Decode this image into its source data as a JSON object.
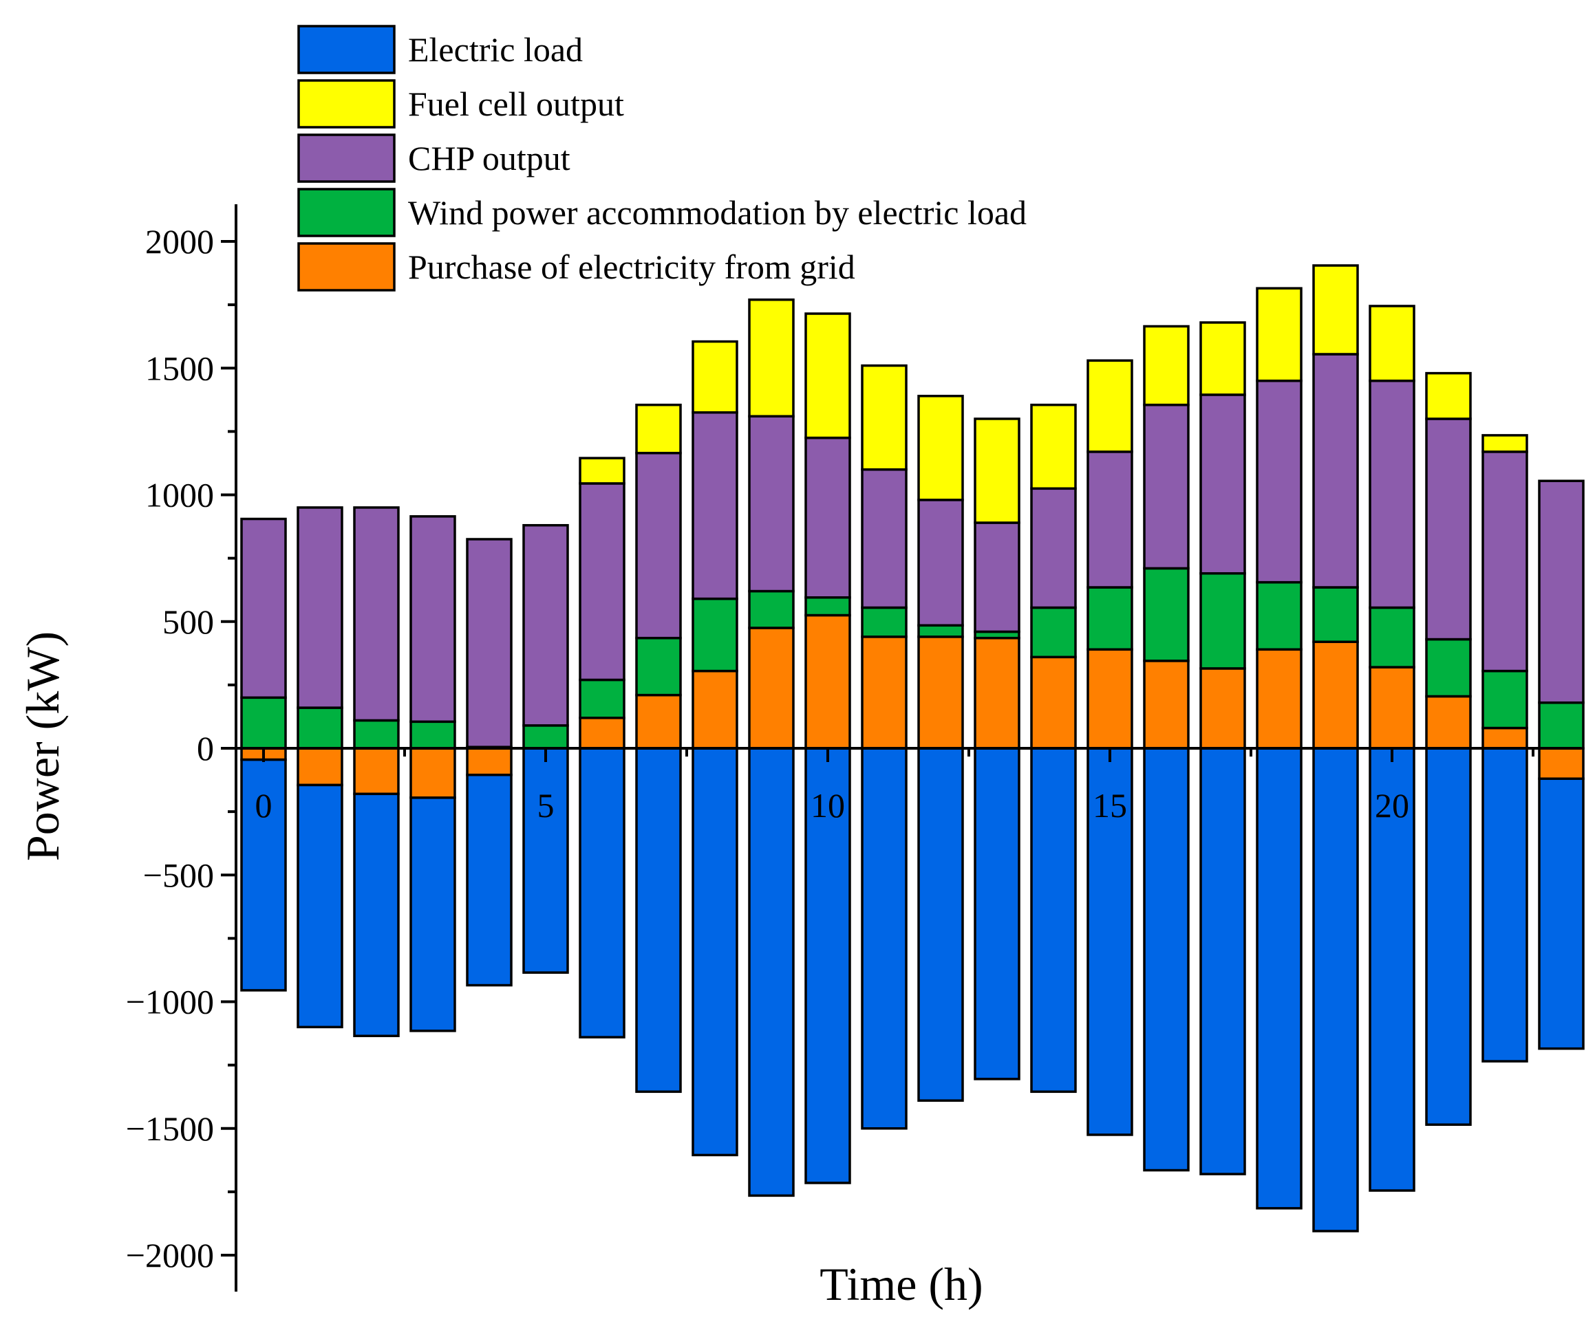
{
  "chart_data": {
    "type": "bar",
    "stacked": true,
    "xlabel": "Time (h)",
    "ylabel": "Power (kW)",
    "ylim": [
      -2000,
      2000
    ],
    "xlim": [
      -0.5,
      23.5
    ],
    "yticks": [
      "2000",
      "1500",
      "1000",
      "500",
      "0",
      "-500",
      "-1000",
      "-1500",
      "-2000"
    ],
    "xticks": [
      "0",
      "5",
      "10",
      "15",
      "20"
    ],
    "x": [
      0,
      1,
      2,
      3,
      4,
      5,
      6,
      7,
      8,
      9,
      10,
      11,
      12,
      13,
      14,
      15,
      16,
      17,
      18,
      19,
      20,
      21,
      22,
      23
    ],
    "legend_position": "top-left",
    "series": [
      {
        "name": "Electric load",
        "color": "#0066e6",
        "values": [
          -910,
          -955,
          -955,
          -920,
          -830,
          -885,
          -1140,
          -1355,
          -1605,
          -1765,
          -1715,
          -1500,
          -1390,
          -1305,
          -1355,
          -1525,
          -1665,
          -1680,
          -1815,
          -1905,
          -1745,
          -1485,
          -1235,
          -1065
        ]
      },
      {
        "name": "Fuel cell output",
        "color": "#ffff00",
        "values": [
          0,
          0,
          0,
          0,
          0,
          0,
          100,
          190,
          280,
          460,
          490,
          410,
          410,
          410,
          330,
          360,
          310,
          285,
          365,
          350,
          295,
          180,
          65,
          0
        ]
      },
      {
        "name": "CHP output",
        "color": "#8c5cac",
        "values": [
          705,
          790,
          840,
          810,
          820,
          790,
          775,
          730,
          735,
          690,
          630,
          545,
          495,
          430,
          470,
          535,
          645,
          705,
          795,
          920,
          895,
          870,
          865,
          875
        ]
      },
      {
        "name": "Wind power accommodation by electric load",
        "color": "#00b140",
        "values": [
          200,
          160,
          110,
          105,
          5,
          90,
          150,
          225,
          285,
          145,
          70,
          115,
          45,
          25,
          195,
          245,
          365,
          375,
          265,
          215,
          235,
          225,
          225,
          180
        ]
      },
      {
        "name": "Purchase of electricity from grid",
        "color": "#ff8000",
        "values": [
          -45,
          -145,
          -180,
          -195,
          -105,
          0,
          120,
          210,
          305,
          475,
          525,
          440,
          440,
          435,
          360,
          390,
          345,
          315,
          390,
          420,
          320,
          205,
          80,
          -120
        ]
      }
    ]
  }
}
